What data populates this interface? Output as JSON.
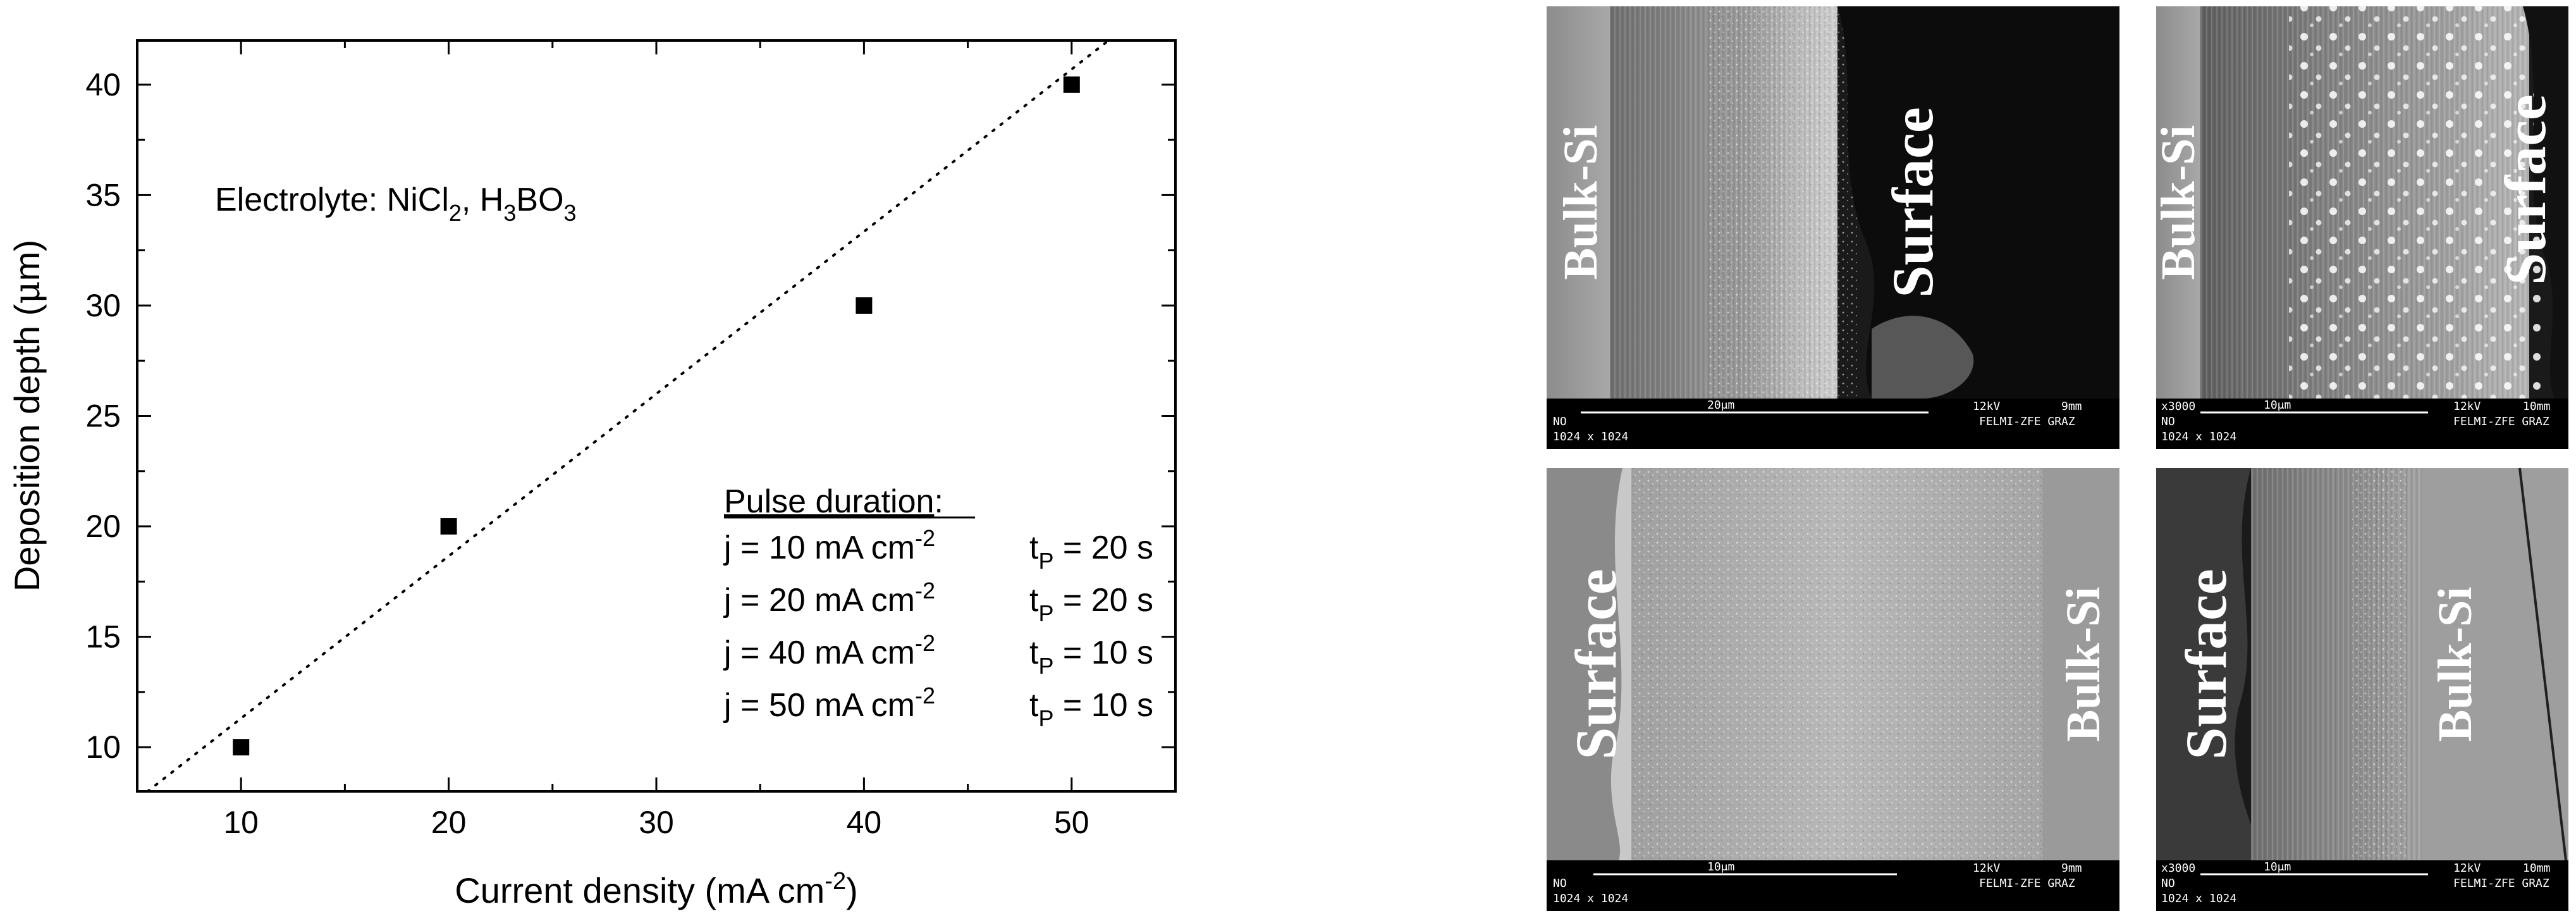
{
  "chart_data": {
    "type": "scatter",
    "xlabel": "Current density (mA cm",
    "xlabel_sup": "-2",
    "xlabel_end": ")",
    "ylabel": "Deposition depth (",
    "ylabel_mu": "μ",
    "ylabel_end": "m)",
    "xlim": [
      5,
      55
    ],
    "ylim": [
      8,
      42
    ],
    "xticks": [
      10,
      20,
      30,
      40,
      50
    ],
    "yticks": [
      10,
      15,
      20,
      25,
      30,
      35,
      40
    ],
    "points": [
      {
        "x": 10,
        "y": 10
      },
      {
        "x": 20,
        "y": 20
      },
      {
        "x": 40,
        "y": 30
      },
      {
        "x": 50,
        "y": 40
      }
    ],
    "fit_line": {
      "style": "dotted",
      "x": [
        5.5,
        54.5
      ],
      "y": [
        8,
        44
      ]
    },
    "annotation": {
      "electrolyte_prefix": "Electrolyte: NiCl",
      "sub1": "2",
      "sep": ", H",
      "sub2": "3",
      "bo": "BO",
      "sub3": "3"
    },
    "legend": {
      "heading": "Pulse duration",
      "heading_colon": ":",
      "rows": [
        {
          "j": "j = 10 mA cm",
          "exp": "-2",
          "t": "t",
          "tsub": "P",
          "tval": " = 20 s"
        },
        {
          "j": "j = 20 mA cm",
          "exp": "-2",
          "t": "t",
          "tsub": "P",
          "tval": " = 20 s"
        },
        {
          "j": "j = 40 mA cm",
          "exp": "-2",
          "t": "t",
          "tsub": "P",
          "tval": " = 10 s"
        },
        {
          "j": "j = 50 mA cm",
          "exp": "-2",
          "t": "t",
          "tsub": "P",
          "tval": " = 10 s"
        }
      ]
    }
  },
  "micrographs": [
    {
      "left_label": "Bulk-Si",
      "right_label": "Surface",
      "scale": "20μm",
      "kv": "12kV",
      "wd": "9mm",
      "mag": "",
      "lab": "FELMI-ZFE GRAZ",
      "res": "1024 x 1024",
      "code": "NO"
    },
    {
      "left_label": "Bulk-Si",
      "right_label": "Surface",
      "scale": "10μm",
      "kv": "12kV",
      "wd": "10mm",
      "mag": "x3000",
      "lab": "FELMI-ZFE GRAZ",
      "res": "1024 x 1024",
      "code": "NO"
    },
    {
      "left_label": "Surface",
      "right_label": "Bulk-Si",
      "scale": "10μm",
      "kv": "12kV",
      "wd": "9mm",
      "mag": "",
      "lab": "FELMI-ZFE GRAZ",
      "res": "1024 x 1024",
      "code": "NO"
    },
    {
      "left_label": "Surface",
      "right_label": "Bulk-Si",
      "scale": "10μm",
      "kv": "12kV",
      "wd": "10mm",
      "mag": "x3000",
      "lab": "FELMI-ZFE GRAZ",
      "res": "1024 x 1024",
      "code": "NO"
    }
  ]
}
